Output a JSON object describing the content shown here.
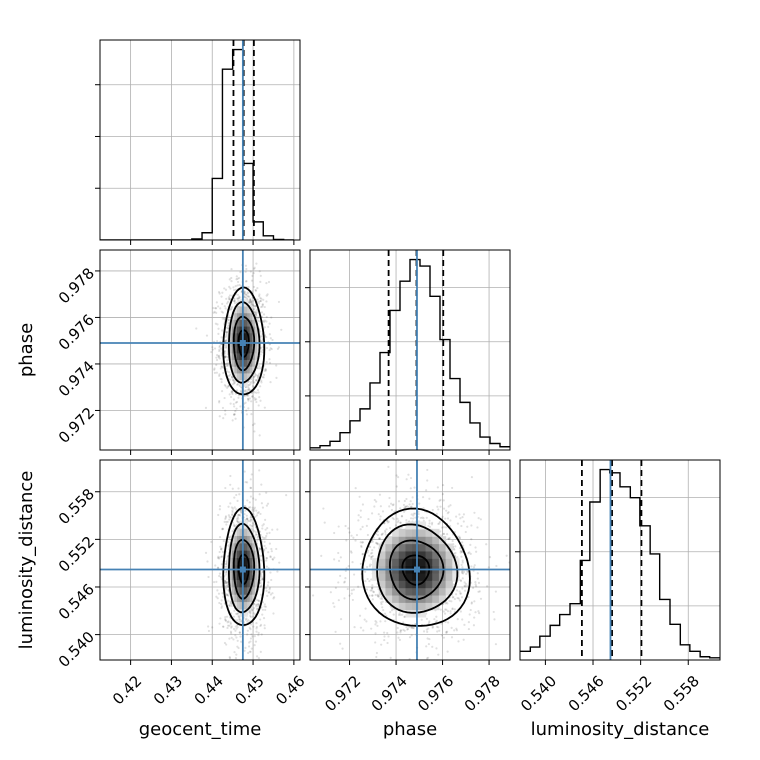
{
  "chart_data": {
    "type": "corner",
    "parameters": [
      "geocent_time",
      "phase",
      "luminosity_distance"
    ],
    "truths": {
      "geocent_time": 0.4475,
      "phase": 0.9749,
      "luminosity_distance": 0.5482
    },
    "colors": {
      "truth": "#4682b4",
      "hist": "#000000",
      "grid": "#b0b0b0"
    },
    "axes": {
      "geocent_time": {
        "lim": [
          0.4125,
          0.4615
        ],
        "ticks": [
          0.42,
          0.43,
          0.44,
          0.45,
          0.46
        ],
        "labels": [
          "0.42",
          "0.43",
          "0.44",
          "0.45",
          "0.46"
        ]
      },
      "phase": {
        "lim": [
          0.9703,
          0.9789
        ],
        "ticks": [
          0.972,
          0.974,
          0.976,
          0.978
        ],
        "labels": [
          "0.972",
          "0.974",
          "0.976",
          "0.978"
        ]
      },
      "luminosity_distance": {
        "lim": [
          0.5368,
          0.562
        ],
        "ticks": [
          0.54,
          0.546,
          0.552,
          0.558
        ],
        "labels": [
          "0.540",
          "0.546",
          "0.552",
          "0.558"
        ]
      }
    },
    "diagonal": [
      {
        "param": "geocent_time",
        "quantiles": [
          0.4452,
          0.4477,
          0.4502
        ],
        "bins": [
          0.4125,
          0.415,
          0.4175,
          0.42,
          0.4225,
          0.425,
          0.4275,
          0.43,
          0.4325,
          0.435,
          0.4375,
          0.44,
          0.4425,
          0.445,
          0.4475,
          0.45,
          0.4525,
          0.455,
          0.4575,
          0.46
        ],
        "counts": [
          0,
          0,
          0,
          0,
          0,
          0,
          0,
          0,
          0,
          2,
          14,
          119,
          330,
          368,
          148,
          35,
          8,
          1,
          0
        ]
      },
      {
        "param": "phase",
        "quantiles": [
          0.97368,
          0.97488,
          0.97603
        ],
        "bins": [
          0.9703,
          0.97073,
          0.97116,
          0.97159,
          0.97202,
          0.97245,
          0.97288,
          0.97331,
          0.97374,
          0.97417,
          0.9746,
          0.97503,
          0.97546,
          0.97589,
          0.97632,
          0.97675,
          0.97718,
          0.97761,
          0.97804,
          0.97847,
          0.9789
        ],
        "counts": [
          2,
          4,
          8,
          16,
          27,
          38,
          62,
          90,
          129,
          156,
          176,
          170,
          142,
          102,
          66,
          44,
          25,
          12,
          6,
          3
        ]
      },
      {
        "param": "luminosity_distance",
        "quantiles": [
          0.5446,
          0.5484,
          0.5521
        ],
        "bins": [
          0.5368,
          0.5381,
          0.5393,
          0.5406,
          0.5418,
          0.5431,
          0.5444,
          0.5456,
          0.5469,
          0.5481,
          0.5494,
          0.5507,
          0.5519,
          0.5532,
          0.5544,
          0.5557,
          0.557,
          0.5582,
          0.5595,
          0.5607,
          0.562
        ],
        "counts": [
          8,
          12,
          22,
          32,
          42,
          52,
          92,
          146,
          176,
          173,
          160,
          150,
          124,
          98,
          56,
          33,
          14,
          8,
          3,
          2
        ]
      }
    ],
    "pairs": [
      {
        "x": "geocent_time",
        "y": "phase",
        "center": [
          0.4477,
          0.9749
        ],
        "sigma": [
          0.0025,
          0.00115
        ],
        "rho": 0.0
      },
      {
        "x": "geocent_time",
        "y": "luminosity_distance",
        "center": [
          0.4477,
          0.5483
        ],
        "sigma": [
          0.0025,
          0.0037
        ],
        "rho": 0.0
      },
      {
        "x": "phase",
        "y": "luminosity_distance",
        "center": [
          0.97485,
          0.5482
        ],
        "sigma": [
          0.00115,
          0.0037
        ],
        "rho": -0.05
      }
    ]
  }
}
